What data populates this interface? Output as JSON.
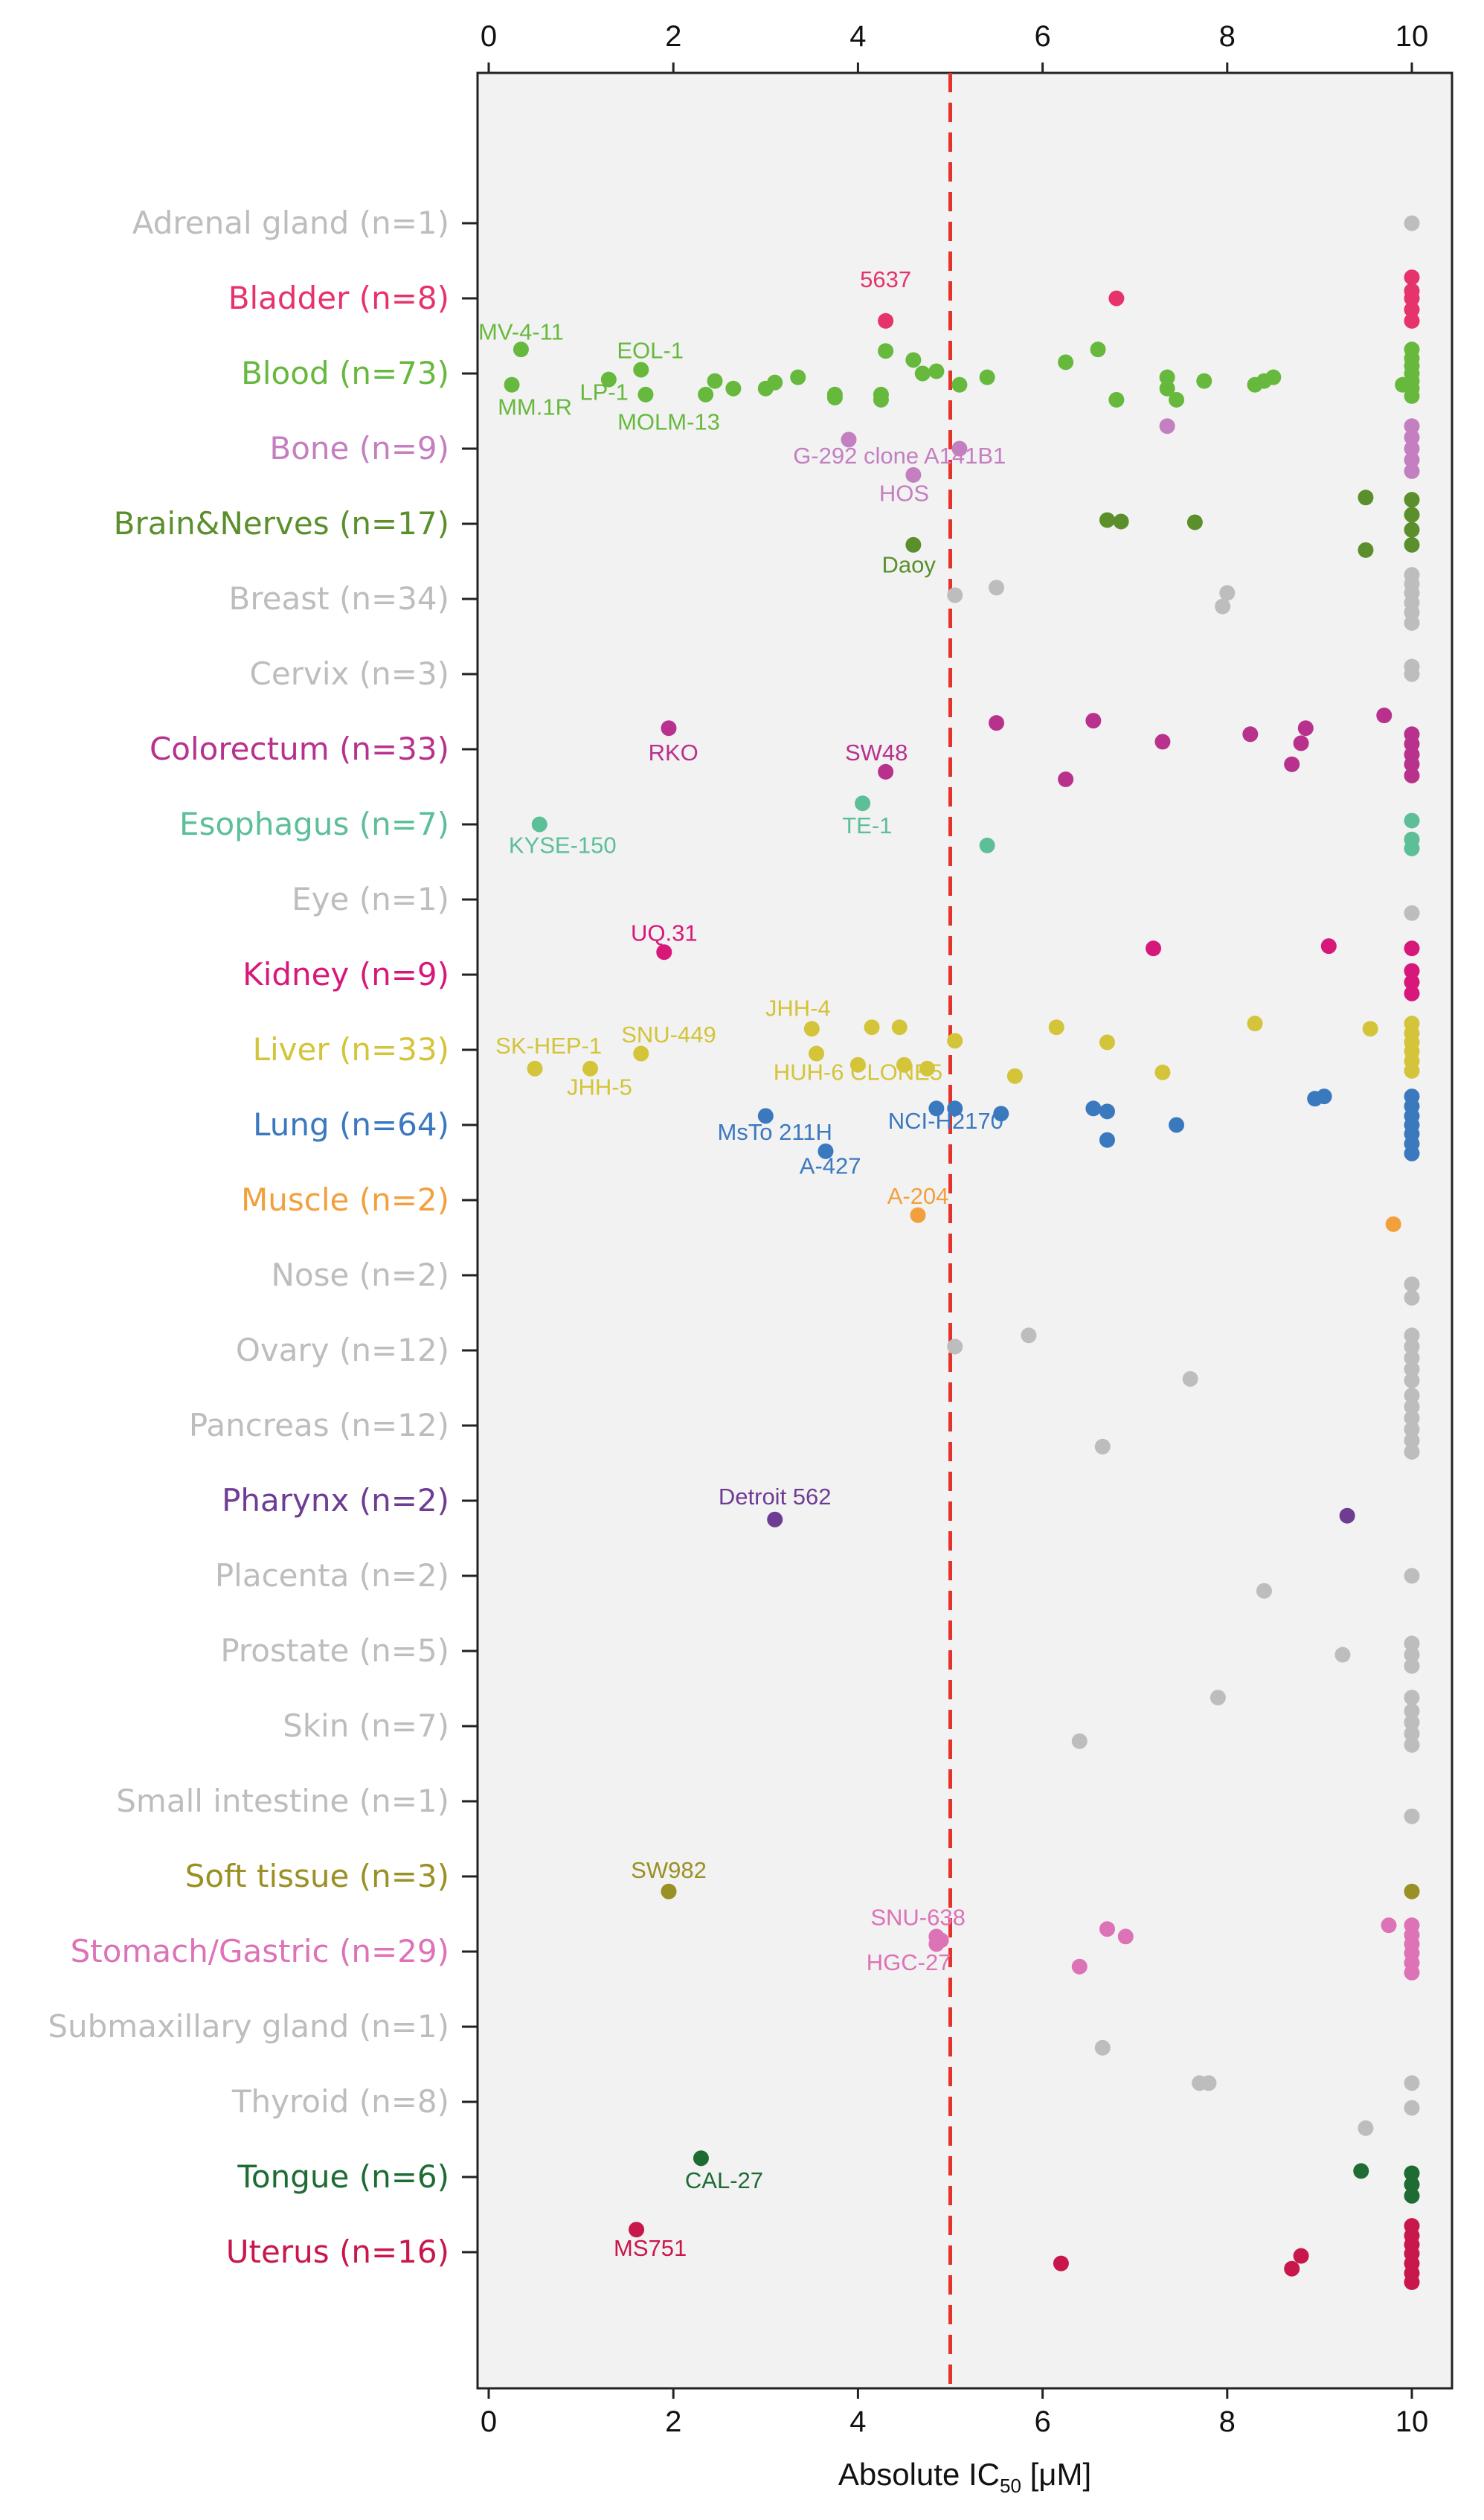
{
  "chart_data": {
    "type": "scatter",
    "xlabel": "Absolute IC",
    "xlabel_sub": "50",
    "xlabel_unit": "  [μM]",
    "xlim": [
      0,
      10
    ],
    "ticks": [
      "0",
      "2",
      "4",
      "6",
      "8",
      "10"
    ],
    "tick_values": [
      0,
      2,
      4,
      6,
      8,
      10
    ],
    "threshold": 5,
    "threshold_color": "#e8312a",
    "categories": [
      {
        "name": "Adrenal gland (n=1)",
        "color": "#bdbdbd",
        "points": [
          [
            10,
            0
          ]
        ]
      },
      {
        "name": "Bladder (n=8)",
        "color": "#e6336b",
        "points": [
          [
            4.3,
            0.3
          ],
          [
            6.8,
            0
          ],
          [
            10,
            -0.28
          ],
          [
            10,
            -0.1
          ],
          [
            10,
            0
          ],
          [
            10,
            0.15
          ],
          [
            10,
            0.3
          ]
        ],
        "labels": [
          {
            "text": "5637",
            "x": 4.3,
            "dy": -0.25
          }
        ]
      },
      {
        "name": "Blood (n=73)",
        "color": "#67b93e",
        "points": [
          [
            0.35,
            -0.32
          ],
          [
            0.25,
            0.15
          ],
          [
            1.3,
            0.08
          ],
          [
            1.65,
            -0.05
          ],
          [
            1.7,
            0.28
          ],
          [
            2.35,
            0.28
          ],
          [
            2.45,
            0.1
          ],
          [
            2.65,
            0.2
          ],
          [
            3.0,
            0.2
          ],
          [
            3.1,
            0.12
          ],
          [
            3.35,
            0.05
          ],
          [
            3.75,
            0.28
          ],
          [
            3.75,
            0.32
          ],
          [
            4.25,
            0.28
          ],
          [
            4.25,
            0.35
          ],
          [
            4.3,
            -0.3
          ],
          [
            4.6,
            -0.18
          ],
          [
            4.7,
            0
          ],
          [
            4.85,
            -0.03
          ],
          [
            5.1,
            0.15
          ],
          [
            5.4,
            0.05
          ],
          [
            6.25,
            -0.15
          ],
          [
            6.6,
            -0.32
          ],
          [
            6.8,
            0.35
          ],
          [
            7.35,
            0.05
          ],
          [
            7.35,
            0.2
          ],
          [
            7.45,
            0.35
          ],
          [
            7.75,
            0.1
          ],
          [
            8.3,
            0.15
          ],
          [
            8.4,
            0.1
          ],
          [
            8.5,
            0.05
          ],
          [
            10,
            -0.32
          ],
          [
            10,
            -0.2
          ],
          [
            10,
            -0.1
          ],
          [
            10,
            0
          ],
          [
            10,
            0.1
          ],
          [
            10,
            0.2
          ],
          [
            10,
            0.3
          ],
          [
            9.9,
            0.15
          ]
        ],
        "labels": [
          {
            "text": "MV-4-11",
            "x": 0.35,
            "dy": -0.55
          },
          {
            "text": "EOL-1",
            "x": 1.75,
            "dy": -0.3
          },
          {
            "text": "MM.1R",
            "x": 0.5,
            "dy": 0.45
          },
          {
            "text": "LP-1",
            "x": 1.25,
            "dy": 0.25
          },
          {
            "text": "MOLM-13",
            "x": 1.95,
            "dy": 0.65
          }
        ]
      },
      {
        "name": "Bone (n=9)",
        "color": "#c37fc0",
        "points": [
          [
            3.9,
            -0.12
          ],
          [
            5.1,
            0
          ],
          [
            4.6,
            0.35
          ],
          [
            7.35,
            -0.3
          ],
          [
            10,
            -0.3
          ],
          [
            10,
            -0.15
          ],
          [
            10,
            0
          ],
          [
            10,
            0.15
          ],
          [
            10,
            0.3
          ]
        ],
        "labels": [
          {
            "text": "G-292 clone A141B1",
            "x": 4.45,
            "dy": 0.1
          },
          {
            "text": "HOS",
            "x": 4.5,
            "dy": 0.6
          }
        ]
      },
      {
        "name": "Brain&Nerves (n=17)",
        "color": "#5a8f2c",
        "points": [
          [
            6.7,
            -0.05
          ],
          [
            6.85,
            -0.03
          ],
          [
            7.65,
            -0.02
          ],
          [
            9.5,
            -0.35
          ],
          [
            9.5,
            0.35
          ],
          [
            4.6,
            0.28
          ],
          [
            10,
            -0.32
          ],
          [
            10,
            -0.12
          ],
          [
            10,
            0.08
          ],
          [
            10,
            0.28
          ]
        ],
        "labels": [
          {
            "text": "Daoy",
            "x": 4.55,
            "dy": 0.55
          }
        ]
      },
      {
        "name": "Breast (n=34)",
        "color": "#bdbdbd",
        "points": [
          [
            5.05,
            -0.05
          ],
          [
            5.5,
            -0.15
          ],
          [
            8.0,
            -0.08
          ],
          [
            7.95,
            0.1
          ],
          [
            10,
            -0.32
          ],
          [
            10,
            -0.2
          ],
          [
            10,
            -0.08
          ],
          [
            10,
            0.05
          ],
          [
            10,
            0.18
          ],
          [
            10,
            0.32
          ]
        ]
      },
      {
        "name": "Cervix (n=3)",
        "color": "#bdbdbd",
        "points": [
          [
            10,
            -0.1
          ],
          [
            10,
            0
          ]
        ]
      },
      {
        "name": "Colorectum (n=33)",
        "color": "#b8318c",
        "points": [
          [
            1.95,
            -0.28
          ],
          [
            4.3,
            0.3
          ],
          [
            5.5,
            -0.35
          ],
          [
            6.55,
            -0.38
          ],
          [
            6.25,
            0.4
          ],
          [
            7.3,
            -0.1
          ],
          [
            8.25,
            -0.2
          ],
          [
            8.85,
            -0.28
          ],
          [
            8.8,
            -0.08
          ],
          [
            8.7,
            0.2
          ],
          [
            9.7,
            -0.45
          ],
          [
            10,
            -0.2
          ],
          [
            10,
            -0.07
          ],
          [
            10,
            0.07
          ],
          [
            10,
            0.2
          ],
          [
            10,
            0.35
          ]
        ],
        "labels": [
          {
            "text": "RKO",
            "x": 2.0,
            "dy": 0.05
          },
          {
            "text": "SW48",
            "x": 4.2,
            "dy": 0.05
          }
        ]
      },
      {
        "name": "Esophagus (n=7)",
        "color": "#5cbf98",
        "points": [
          [
            0.55,
            0
          ],
          [
            4.05,
            -0.28
          ],
          [
            5.4,
            0.28
          ],
          [
            10,
            -0.05
          ],
          [
            10,
            0.2
          ],
          [
            10,
            0.32
          ]
        ],
        "labels": [
          {
            "text": "KYSE-150",
            "x": 0.8,
            "dy": 0.28
          },
          {
            "text": "TE-1",
            "x": 4.1,
            "dy": 0.02
          }
        ]
      },
      {
        "name": "Eye (n=1)",
        "color": "#bdbdbd",
        "points": [
          [
            10,
            0.18
          ]
        ]
      },
      {
        "name": "Kidney (n=9)",
        "color": "#d7187a",
        "points": [
          [
            1.9,
            -0.3
          ],
          [
            7.2,
            -0.35
          ],
          [
            9.1,
            -0.38
          ],
          [
            10,
            -0.35
          ],
          [
            10,
            -0.05
          ],
          [
            10,
            0.1
          ],
          [
            10,
            0.25
          ]
        ],
        "labels": [
          {
            "text": "UQ.31",
            "x": 1.9,
            "dy": -0.55
          }
        ]
      },
      {
        "name": "Liver (n=33)",
        "color": "#d4c439",
        "points": [
          [
            0.5,
            0.25
          ],
          [
            1.1,
            0.25
          ],
          [
            1.65,
            0.05
          ],
          [
            3.5,
            -0.28
          ],
          [
            3.55,
            0.05
          ],
          [
            4.0,
            0.2
          ],
          [
            4.15,
            -0.3
          ],
          [
            4.45,
            -0.3
          ],
          [
            4.5,
            0.2
          ],
          [
            4.75,
            0.25
          ],
          [
            5.05,
            -0.12
          ],
          [
            5.7,
            0.35
          ],
          [
            6.15,
            -0.3
          ],
          [
            6.7,
            -0.1
          ],
          [
            7.3,
            0.3
          ],
          [
            8.3,
            -0.35
          ],
          [
            9.55,
            -0.28
          ],
          [
            10,
            -0.35
          ],
          [
            10,
            -0.22
          ],
          [
            10,
            -0.1
          ],
          [
            10,
            0.02
          ],
          [
            10,
            0.15
          ],
          [
            10,
            0.28
          ]
        ],
        "labels": [
          {
            "text": "JHH-4",
            "x": 3.35,
            "dy": -0.55
          },
          {
            "text": "SK-HEP-1",
            "x": 0.65,
            "dy": -0.05
          },
          {
            "text": "SNU-449",
            "x": 1.95,
            "dy": -0.2
          },
          {
            "text": "JHH-5",
            "x": 1.2,
            "dy": 0.5
          },
          {
            "text": "HUH-6 CLONE5",
            "x": 4.0,
            "dy": 0.3
          }
        ]
      },
      {
        "name": "Lung (n=64)",
        "color": "#3b79bf",
        "points": [
          [
            3.0,
            -0.12
          ],
          [
            3.65,
            0.35
          ],
          [
            4.85,
            -0.22
          ],
          [
            5.05,
            -0.22
          ],
          [
            5.55,
            -0.15
          ],
          [
            6.55,
            -0.22
          ],
          [
            6.7,
            -0.18
          ],
          [
            6.7,
            0.2
          ],
          [
            7.45,
            0
          ],
          [
            8.95,
            -0.35
          ],
          [
            9.05,
            -0.38
          ],
          [
            10,
            -0.38
          ],
          [
            10,
            -0.25
          ],
          [
            10,
            -0.12
          ],
          [
            10,
            0
          ],
          [
            10,
            0.12
          ],
          [
            10,
            0.25
          ],
          [
            10,
            0.38
          ]
        ],
        "labels": [
          {
            "text": "MsTo 211H",
            "x": 3.1,
            "dy": 0.1
          },
          {
            "text": "A-427",
            "x": 3.7,
            "dy": 0.55
          },
          {
            "text": "NCI-H2170",
            "x": 4.95,
            "dy": -0.05
          }
        ]
      },
      {
        "name": "Muscle (n=2)",
        "color": "#f2a03d",
        "points": [
          [
            4.65,
            0.2
          ],
          [
            9.8,
            0.32
          ]
        ],
        "labels": [
          {
            "text": "A-204",
            "x": 4.65,
            "dy": -0.05
          }
        ]
      },
      {
        "name": "Nose (n=2)",
        "color": "#bdbdbd",
        "points": [
          [
            10,
            0.12
          ],
          [
            10,
            0.3
          ]
        ]
      },
      {
        "name": "Ovary (n=12)",
        "color": "#bdbdbd",
        "points": [
          [
            5.05,
            -0.05
          ],
          [
            5.85,
            -0.2
          ],
          [
            7.6,
            0.38
          ],
          [
            10,
            -0.2
          ],
          [
            10,
            -0.05
          ],
          [
            10,
            0.1
          ],
          [
            10,
            0.25
          ],
          [
            10,
            0.4
          ]
        ]
      },
      {
        "name": "Pancreas (n=12)",
        "color": "#bdbdbd",
        "points": [
          [
            6.65,
            0.28
          ],
          [
            10,
            -0.4
          ],
          [
            10,
            -0.25
          ],
          [
            10,
            -0.1
          ],
          [
            10,
            0.05
          ],
          [
            10,
            0.2
          ],
          [
            10,
            0.35
          ]
        ]
      },
      {
        "name": "Pharynx (n=2)",
        "color": "#6f3c94",
        "points": [
          [
            3.1,
            0.25
          ],
          [
            9.3,
            0.2
          ]
        ],
        "labels": [
          {
            "text": "Detroit 562",
            "x": 3.1,
            "dy": -0.05
          }
        ]
      },
      {
        "name": "Placenta (n=2)",
        "color": "#bdbdbd",
        "points": [
          [
            10,
            0
          ],
          [
            8.4,
            0.2
          ]
        ]
      },
      {
        "name": "Prostate (n=5)",
        "color": "#bdbdbd",
        "points": [
          [
            9.25,
            0.05
          ],
          [
            10,
            -0.1
          ],
          [
            10,
            0.05
          ],
          [
            10,
            0.2
          ]
        ]
      },
      {
        "name": "Skin (n=7)",
        "color": "#bdbdbd",
        "points": [
          [
            7.9,
            -0.38
          ],
          [
            6.4,
            0.2
          ],
          [
            10,
            -0.38
          ],
          [
            10,
            -0.2
          ],
          [
            10,
            -0.05
          ],
          [
            10,
            0.1
          ],
          [
            10,
            0.25
          ]
        ]
      },
      {
        "name": "Small intestine (n=1)",
        "color": "#bdbdbd",
        "points": [
          [
            10,
            0.2
          ]
        ]
      },
      {
        "name": "Soft tissue (n=3)",
        "color": "#9a9024",
        "points": [
          [
            1.95,
            0.2
          ],
          [
            10,
            0.2
          ]
        ],
        "labels": [
          {
            "text": "SW982",
            "x": 1.95,
            "dy": -0.08
          }
        ]
      },
      {
        "name": "Stomach/Gastric (n=29)",
        "color": "#dd72b7",
        "points": [
          [
            4.85,
            -0.2
          ],
          [
            4.9,
            -0.15
          ],
          [
            4.85,
            -0.1
          ],
          [
            6.7,
            -0.3
          ],
          [
            6.9,
            -0.2
          ],
          [
            6.4,
            0.2
          ],
          [
            9.75,
            -0.35
          ],
          [
            10,
            -0.35
          ],
          [
            10,
            -0.22
          ],
          [
            10,
            -0.1
          ],
          [
            10,
            0.02
          ],
          [
            10,
            0.15
          ],
          [
            10,
            0.28
          ]
        ],
        "labels": [
          {
            "text": "SNU-638",
            "x": 4.65,
            "dy": -0.45
          },
          {
            "text": "HGC-27",
            "x": 4.55,
            "dy": 0.15
          }
        ]
      },
      {
        "name": "Submaxillary gland (n=1)",
        "color": "#bdbdbd",
        "points": [
          [
            6.65,
            0.28
          ]
        ]
      },
      {
        "name": "Thyroid (n=8)",
        "color": "#bdbdbd",
        "points": [
          [
            7.7,
            -0.25
          ],
          [
            7.8,
            -0.25
          ],
          [
            9.5,
            0.35
          ],
          [
            10,
            -0.25
          ],
          [
            10,
            0.08
          ]
        ]
      },
      {
        "name": "Tongue (n=6)",
        "color": "#1e6b34",
        "points": [
          [
            2.3,
            -0.25
          ],
          [
            9.45,
            -0.08
          ],
          [
            10,
            -0.05
          ],
          [
            10,
            0.1
          ],
          [
            10,
            0.25
          ]
        ],
        "labels": [
          {
            "text": "CAL-27",
            "x": 2.55,
            "dy": 0.05
          }
        ]
      },
      {
        "name": "Uterus (n=16)",
        "color": "#c8174a",
        "points": [
          [
            1.6,
            -0.3
          ],
          [
            6.2,
            0.15
          ],
          [
            8.8,
            0.05
          ],
          [
            8.7,
            0.22
          ],
          [
            10,
            -0.35
          ],
          [
            10,
            -0.22
          ],
          [
            10,
            -0.1
          ],
          [
            10,
            0.02
          ],
          [
            10,
            0.15
          ],
          [
            10,
            0.28
          ],
          [
            10,
            0.4
          ]
        ],
        "labels": [
          {
            "text": "MS751",
            "x": 1.75,
            "dy": -0.05
          }
        ]
      }
    ]
  }
}
